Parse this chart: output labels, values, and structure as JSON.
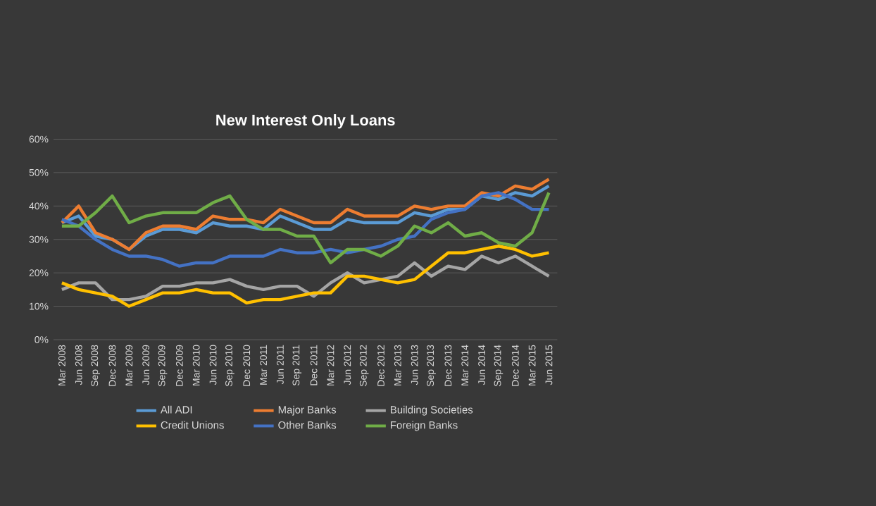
{
  "chart_data": {
    "type": "line",
    "title": "New Interest Only Loans",
    "categories": [
      "Mar 2008",
      "Jun 2008",
      "Sep 2008",
      "Dec 2008",
      "Mar 2009",
      "Jun 2009",
      "Sep 2009",
      "Dec 2009",
      "Mar 2010",
      "Jun 2010",
      "Sep 2010",
      "Dec 2010",
      "Mar 2011",
      "Jun 2011",
      "Sep 2011",
      "Dec 2011",
      "Mar 2012",
      "Jun 2012",
      "Sep 2012",
      "Dec 2012",
      "Mar 2013",
      "Jun 2013",
      "Sep 2013",
      "Dec 2013",
      "Mar 2014",
      "Jun 2014",
      "Sep 2014",
      "Dec 2014",
      "Mar 2015",
      "Jun 2015"
    ],
    "series": [
      {
        "name": "All ADI",
        "color": "#5b9bd5",
        "values": [
          35,
          37,
          31,
          30,
          27,
          31,
          33,
          33,
          32,
          35,
          34,
          34,
          33,
          37,
          35,
          33,
          33,
          36,
          35,
          35,
          35,
          38,
          37,
          39,
          39,
          43,
          42,
          44,
          43,
          46
        ]
      },
      {
        "name": "Major Banks",
        "color": "#ed7d31",
        "values": [
          35,
          40,
          32,
          30,
          27,
          32,
          34,
          34,
          33,
          37,
          36,
          36,
          35,
          39,
          37,
          35,
          35,
          39,
          37,
          37,
          37,
          40,
          39,
          40,
          40,
          44,
          43,
          46,
          45,
          48
        ]
      },
      {
        "name": "Building Societies",
        "color": "#a5a5a5",
        "values": [
          15,
          17,
          17,
          12,
          12,
          13,
          16,
          16,
          17,
          17,
          18,
          16,
          15,
          16,
          16,
          13,
          17,
          20,
          17,
          18,
          19,
          23,
          19,
          22,
          21,
          25,
          23,
          25,
          22,
          19
        ]
      },
      {
        "name": "Credit Unions",
        "color": "#ffc000",
        "values": [
          17,
          15,
          14,
          13,
          10,
          12,
          14,
          14,
          15,
          14,
          14,
          11,
          12,
          12,
          13,
          14,
          14,
          19,
          19,
          18,
          17,
          18,
          22,
          26,
          26,
          27,
          28,
          27,
          25,
          26
        ]
      },
      {
        "name": "Other Banks",
        "color": "#4472c4",
        "values": [
          36,
          34,
          30,
          27,
          25,
          25,
          24,
          22,
          23,
          23,
          25,
          25,
          25,
          27,
          26,
          26,
          27,
          26,
          27,
          28,
          30,
          31,
          36,
          38,
          39,
          43,
          44,
          42,
          39,
          39
        ]
      },
      {
        "name": "Foreign Banks",
        "color": "#70ad47",
        "values": [
          34,
          34,
          38,
          43,
          35,
          37,
          38,
          38,
          38,
          41,
          43,
          36,
          33,
          33,
          31,
          31,
          23,
          27,
          27,
          25,
          28,
          34,
          32,
          35,
          31,
          32,
          29,
          28,
          32,
          44
        ]
      }
    ],
    "ylim": [
      0,
      60
    ],
    "yticks": [
      {
        "value": 0,
        "label": "0%"
      },
      {
        "value": 10,
        "label": "10%"
      },
      {
        "value": 20,
        "label": "20%"
      },
      {
        "value": 30,
        "label": "30%"
      },
      {
        "value": 40,
        "label": "40%"
      },
      {
        "value": 50,
        "label": "50%"
      },
      {
        "value": 60,
        "label": "60%"
      }
    ],
    "grid": "y",
    "legend": "bottom",
    "marker": "none",
    "line_style": "solid"
  }
}
